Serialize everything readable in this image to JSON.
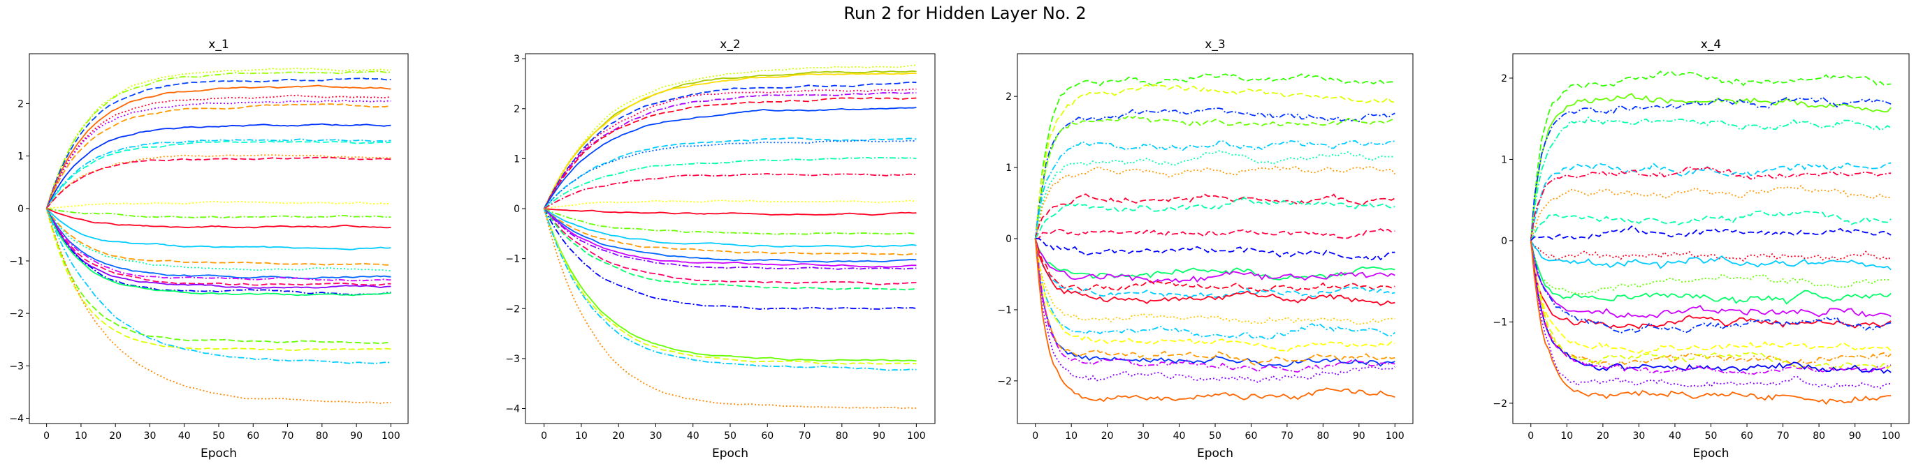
{
  "figure": {
    "title": "Run 2 for Hidden Layer No. 2"
  },
  "chart_data": [
    {
      "type": "line",
      "title": "x_1",
      "xlabel": "Epoch",
      "ylabel": "",
      "xlim": [
        -5,
        105
      ],
      "ylim": [
        -4.1,
        2.95
      ],
      "xticks": [
        0,
        10,
        20,
        30,
        40,
        50,
        60,
        70,
        80,
        90,
        100
      ],
      "yticks": [
        -4,
        -3,
        -2,
        -1,
        0,
        1,
        2
      ],
      "x_range": [
        0,
        100
      ],
      "grid": false,
      "series": [
        {
          "color": "#ccff00",
          "style": "dotted",
          "final": 2.65
        },
        {
          "color": "#99ff00",
          "style": "dashdot",
          "final": 2.6
        },
        {
          "color": "#0044ff",
          "style": "dashed",
          "final": 2.45
        },
        {
          "color": "#ff6600",
          "style": "solid",
          "final": 2.3
        },
        {
          "color": "#ff0033",
          "style": "dotted",
          "final": 2.15
        },
        {
          "color": "#aa00ff",
          "style": "dotted",
          "final": 2.05
        },
        {
          "color": "#ff9900",
          "style": "dashed",
          "final": 1.95
        },
        {
          "color": "#0033ff",
          "style": "solid",
          "final": 1.6
        },
        {
          "color": "#00ccff",
          "style": "dashdot",
          "final": 1.3
        },
        {
          "color": "#00ffcc",
          "style": "dashed",
          "final": 1.25
        },
        {
          "color": "#ff9900",
          "style": "dotted",
          "final": 1.0
        },
        {
          "color": "#ff0044",
          "style": "dashed",
          "final": 0.95
        },
        {
          "color": "#ffff00",
          "style": "dotted",
          "final": 0.1
        },
        {
          "color": "#66ff00",
          "style": "dashdot",
          "final": -0.15
        },
        {
          "color": "#ff0022",
          "style": "solid",
          "final": -0.35
        },
        {
          "color": "#00ccff",
          "style": "solid",
          "final": -0.75
        },
        {
          "color": "#ff9900",
          "style": "dashed",
          "final": -1.05
        },
        {
          "color": "#00ffaa",
          "style": "dotted",
          "final": -1.15
        },
        {
          "color": "#0066ff",
          "style": "solid",
          "final": -1.3
        },
        {
          "color": "#cc00ff",
          "style": "dashdot",
          "final": -1.35
        },
        {
          "color": "#ff0066",
          "style": "dashed",
          "final": -1.45
        },
        {
          "color": "#8800ff",
          "style": "solid",
          "final": -1.5
        },
        {
          "color": "#0000ff",
          "style": "dashdot",
          "final": -1.6
        },
        {
          "color": "#00ff66",
          "style": "solid",
          "final": -1.65
        },
        {
          "color": "#66ff00",
          "style": "dashed",
          "final": -2.55
        },
        {
          "color": "#ddff00",
          "style": "dashed",
          "final": -2.7
        },
        {
          "color": "#00ccff",
          "style": "dashdot",
          "final": -2.95
        },
        {
          "color": "#ff8800",
          "style": "dotted",
          "final": -3.7
        }
      ]
    },
    {
      "type": "line",
      "title": "x_2",
      "xlabel": "Epoch",
      "ylabel": "",
      "xlim": [
        -5,
        105
      ],
      "ylim": [
        -4.3,
        3.1
      ],
      "xticks": [
        0,
        10,
        20,
        30,
        40,
        50,
        60,
        70,
        80,
        90,
        100
      ],
      "yticks": [
        -4,
        -3,
        -2,
        -1,
        0,
        1,
        2,
        3
      ],
      "x_range": [
        0,
        100
      ],
      "grid": false,
      "series": [
        {
          "color": "#ccff00",
          "style": "dotted",
          "final": 2.85
        },
        {
          "color": "#aacc00",
          "style": "solid",
          "final": 2.75
        },
        {
          "color": "#ffdd00",
          "style": "solid",
          "final": 2.7
        },
        {
          "color": "#0033ff",
          "style": "dashed",
          "final": 2.5
        },
        {
          "color": "#ff0066",
          "style": "dotted",
          "final": 2.4
        },
        {
          "color": "#aa00ff",
          "style": "dashdot",
          "final": 2.3
        },
        {
          "color": "#ff0022",
          "style": "dashed",
          "final": 2.2
        },
        {
          "color": "#0044ff",
          "style": "solid",
          "final": 2.0
        },
        {
          "color": "#00ccff",
          "style": "dashed",
          "final": 1.4
        },
        {
          "color": "#0066ff",
          "style": "dotted",
          "final": 1.35
        },
        {
          "color": "#00ffaa",
          "style": "dashdot",
          "final": 1.0
        },
        {
          "color": "#ff0044",
          "style": "dashdot",
          "final": 0.7
        },
        {
          "color": "#ffff00",
          "style": "dotted",
          "final": 0.15
        },
        {
          "color": "#ff0022",
          "style": "solid",
          "final": -0.1
        },
        {
          "color": "#66ff00",
          "style": "dashdot",
          "final": -0.5
        },
        {
          "color": "#00ccff",
          "style": "solid",
          "final": -0.75
        },
        {
          "color": "#ff9900",
          "style": "dashed",
          "final": -0.9
        },
        {
          "color": "#0066ff",
          "style": "solid",
          "final": -1.05
        },
        {
          "color": "#cc00ff",
          "style": "solid",
          "final": -1.15
        },
        {
          "color": "#8800ff",
          "style": "dashdot",
          "final": -1.2
        },
        {
          "color": "#ff0066",
          "style": "dashed",
          "final": -1.5
        },
        {
          "color": "#00ff66",
          "style": "dashed",
          "final": -1.6
        },
        {
          "color": "#0000ff",
          "style": "dashdot",
          "final": -2.0
        },
        {
          "color": "#66ff00",
          "style": "solid",
          "final": -3.05
        },
        {
          "color": "#ddff00",
          "style": "dashed",
          "final": -3.1
        },
        {
          "color": "#00ccff",
          "style": "dashdot",
          "final": -3.2
        },
        {
          "color": "#ff8800",
          "style": "dotted",
          "final": -4.0
        }
      ]
    },
    {
      "type": "line",
      "title": "x_3",
      "xlabel": "Epoch",
      "ylabel": "",
      "xlim": [
        -5,
        105
      ],
      "ylim": [
        -2.6,
        2.6
      ],
      "xticks": [
        0,
        10,
        20,
        30,
        40,
        50,
        60,
        70,
        80,
        90,
        100
      ],
      "yticks": [
        -2,
        -1,
        0,
        1,
        2
      ],
      "x_range": [
        0,
        100
      ],
      "grid": false,
      "series": [
        {
          "color": "#33ff00",
          "style": "dashed",
          "final": 2.25
        },
        {
          "color": "#ddff00",
          "style": "dashed",
          "final": 2.05
        },
        {
          "color": "#0033ff",
          "style": "dashdot",
          "final": 1.75
        },
        {
          "color": "#66ff00",
          "style": "dashed",
          "final": 1.65
        },
        {
          "color": "#00ccff",
          "style": "dashdot",
          "final": 1.3
        },
        {
          "color": "#00ffaa",
          "style": "dotted",
          "final": 1.1
        },
        {
          "color": "#ff9900",
          "style": "dotted",
          "final": 0.95
        },
        {
          "color": "#ff0033",
          "style": "dashed",
          "final": 0.55
        },
        {
          "color": "#00ffaa",
          "style": "dashed",
          "final": 0.5
        },
        {
          "color": "#ff0044",
          "style": "dashed",
          "final": 0.1
        },
        {
          "color": "#0000ff",
          "style": "dashed",
          "final": -0.2
        },
        {
          "color": "#00ff66",
          "style": "solid",
          "final": -0.45
        },
        {
          "color": "#cc00ff",
          "style": "solid",
          "final": -0.6
        },
        {
          "color": "#ff0022",
          "style": "dashed",
          "final": -0.7
        },
        {
          "color": "#00ccff",
          "style": "dashed",
          "final": -0.75
        },
        {
          "color": "#ff0022",
          "style": "solid",
          "final": -0.85
        },
        {
          "color": "#ffcc00",
          "style": "dotted",
          "final": -1.1
        },
        {
          "color": "#00ccff",
          "style": "dashdot",
          "final": -1.3
        },
        {
          "color": "#ffff00",
          "style": "dashed",
          "final": -1.45
        },
        {
          "color": "#0033ff",
          "style": "solid",
          "final": -1.7
        },
        {
          "color": "#ff9900",
          "style": "dashed",
          "final": -1.65
        },
        {
          "color": "#cc00ff",
          "style": "dashdot",
          "final": -1.8
        },
        {
          "color": "#8800ff",
          "style": "dotted",
          "final": -1.95
        },
        {
          "color": "#ff6600",
          "style": "solid",
          "final": -2.2
        }
      ]
    },
    {
      "type": "line",
      "title": "x_4",
      "xlabel": "Epoch",
      "ylabel": "",
      "xlim": [
        -5,
        105
      ],
      "ylim": [
        -2.25,
        2.3
      ],
      "xticks": [
        0,
        10,
        20,
        30,
        40,
        50,
        60,
        70,
        80,
        90,
        100
      ],
      "yticks": [
        -2,
        -1,
        0,
        1,
        2
      ],
      "x_range": [
        0,
        100
      ],
      "grid": false,
      "series": [
        {
          "color": "#33ff00",
          "style": "dashed",
          "final": 2.0
        },
        {
          "color": "#66ff00",
          "style": "solid",
          "final": 1.7
        },
        {
          "color": "#0033ff",
          "style": "dashdot",
          "final": 1.7
        },
        {
          "color": "#00ffaa",
          "style": "dashdot",
          "final": 1.45
        },
        {
          "color": "#00ccff",
          "style": "dashed",
          "final": 0.9
        },
        {
          "color": "#ff0044",
          "style": "dashdot",
          "final": 0.85
        },
        {
          "color": "#ff9900",
          "style": "dotted",
          "final": 0.55
        },
        {
          "color": "#00ffaa",
          "style": "dashed",
          "final": 0.3
        },
        {
          "color": "#0000ff",
          "style": "dashed",
          "final": 0.1
        },
        {
          "color": "#ff0022",
          "style": "dotted",
          "final": -0.2
        },
        {
          "color": "#00ccff",
          "style": "solid",
          "final": -0.3
        },
        {
          "color": "#66ff00",
          "style": "dotted",
          "final": -0.55
        },
        {
          "color": "#00ff66",
          "style": "solid",
          "final": -0.7
        },
        {
          "color": "#cc00ff",
          "style": "solid",
          "final": -0.9
        },
        {
          "color": "#ff0022",
          "style": "solid",
          "final": -1.0
        },
        {
          "color": "#0033ff",
          "style": "dashdot",
          "final": -1.05
        },
        {
          "color": "#ffff00",
          "style": "dashed",
          "final": -1.3
        },
        {
          "color": "#ff9900",
          "style": "dashdot",
          "final": -1.45
        },
        {
          "color": "#ddff00",
          "style": "dashed",
          "final": -1.5
        },
        {
          "color": "#0000ff",
          "style": "solid",
          "final": -1.6
        },
        {
          "color": "#cc00ff",
          "style": "dashdot",
          "final": -1.6
        },
        {
          "color": "#8800ff",
          "style": "dotted",
          "final": -1.8
        },
        {
          "color": "#ff6600",
          "style": "solid",
          "final": -1.9
        }
      ]
    }
  ]
}
